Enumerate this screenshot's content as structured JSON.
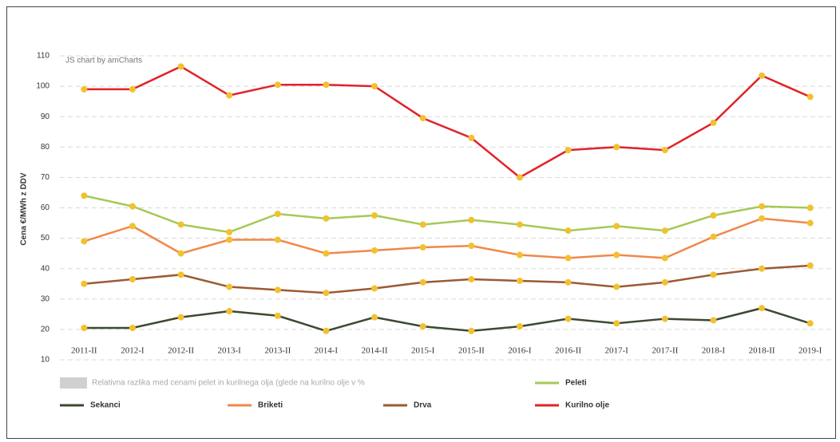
{
  "chart_data": {
    "type": "line",
    "watermark": "JS chart by amCharts",
    "y_label": "Cena €/MWh z DDV",
    "categories": [
      "2011-II",
      "2012-I",
      "2012-II",
      "2013-I",
      "2013-II",
      "2014-I",
      "2014-II",
      "2015-I",
      "2015-II",
      "2016-I",
      "2016-II",
      "2017-I",
      "2017-II",
      "2018-I",
      "2018-II",
      "2019-I"
    ],
    "ylim": [
      10,
      110
    ],
    "yticks": [
      10,
      20,
      30,
      40,
      50,
      60,
      70,
      80,
      90,
      100,
      110
    ],
    "grid": true,
    "marker_color": "#f2c12e",
    "extra_legend": {
      "name": "Relativna razlika med cenami pelet in kurilnega olja (glede na kurilno olje v %",
      "color": "#d0d0d0"
    },
    "series": [
      {
        "name": "Peleti",
        "color": "#a5c956",
        "values": [
          64,
          60.5,
          54.5,
          52,
          58,
          56.5,
          57.5,
          54.5,
          56,
          54.5,
          52.5,
          54,
          52.5,
          57.5,
          60.5,
          60
        ]
      },
      {
        "name": "Sekanci",
        "color": "#3c4a30",
        "values": [
          20.5,
          20.5,
          24,
          26,
          24.5,
          19.5,
          24,
          21,
          19.5,
          21,
          23.5,
          22,
          23.5,
          23,
          27,
          22
        ]
      },
      {
        "name": "Briketi",
        "color": "#f0884a",
        "values": [
          49,
          54,
          45,
          49.5,
          49.5,
          45,
          46,
          47,
          47.5,
          44.5,
          43.5,
          44.5,
          43.5,
          50.5,
          56.5,
          55
        ]
      },
      {
        "name": "Drva",
        "color": "#9c5a34",
        "values": [
          35,
          36.5,
          38,
          34,
          33,
          32,
          33.5,
          35.5,
          36.5,
          36,
          35.5,
          34,
          35.5,
          38,
          40,
          41
        ]
      },
      {
        "name": "Kurilno olje",
        "color": "#e0232a",
        "values": [
          99,
          99,
          106.5,
          97,
          100.5,
          100.5,
          100,
          89.5,
          83,
          70,
          79,
          80,
          79,
          88,
          103.5,
          96.5
        ]
      }
    ]
  }
}
